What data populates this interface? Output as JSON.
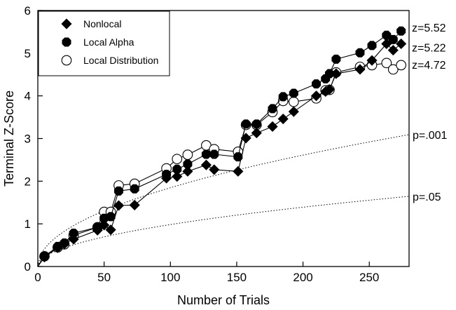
{
  "chart_data": {
    "type": "line",
    "title": "",
    "xlabel": "Number of Trials",
    "ylabel": "Terminal Z-Score",
    "xlim": [
      0,
      280
    ],
    "ylim": [
      0,
      6
    ],
    "xticks": [
      0,
      50,
      100,
      150,
      200,
      250
    ],
    "yticks": [
      0,
      1,
      2,
      3,
      4,
      5,
      6
    ],
    "grid": false,
    "legend_position": "top-left",
    "series": [
      {
        "name": "Nonlocal",
        "marker": "diamond",
        "color": "#000000",
        "x": [
          5,
          15,
          20,
          27,
          45,
          50,
          55,
          61,
          73,
          97,
          105,
          113,
          127,
          133,
          151,
          157,
          165,
          177,
          185,
          193,
          210,
          217,
          220,
          225,
          243,
          252,
          263,
          268,
          274
        ],
        "y": [
          0.22,
          0.44,
          0.53,
          0.64,
          0.85,
          0.97,
          0.86,
          1.43,
          1.44,
          2.07,
          2.11,
          2.23,
          2.38,
          2.27,
          2.23,
          3.01,
          3.13,
          3.28,
          3.46,
          3.63,
          4.0,
          4.1,
          4.15,
          4.52,
          4.62,
          4.83,
          5.22,
          5.07,
          5.22
        ]
      },
      {
        "name": "Local Alpha",
        "marker": "octagon-filled",
        "color": "#000000",
        "x": [
          5,
          15,
          20,
          27,
          45,
          50,
          55,
          61,
          73,
          97,
          105,
          113,
          127,
          133,
          151,
          157,
          165,
          177,
          185,
          193,
          210,
          217,
          220,
          225,
          243,
          252,
          263,
          268,
          274
        ],
        "y": [
          0.24,
          0.47,
          0.55,
          0.78,
          0.92,
          1.13,
          1.17,
          1.77,
          1.82,
          2.16,
          2.28,
          2.4,
          2.63,
          2.63,
          2.57,
          3.34,
          3.34,
          3.7,
          3.98,
          4.06,
          4.28,
          4.4,
          4.52,
          4.86,
          5.01,
          5.18,
          5.42,
          5.32,
          5.52
        ]
      },
      {
        "name": "Local Distribution",
        "marker": "circle-open",
        "color": "#000000",
        "x": [
          5,
          15,
          20,
          27,
          45,
          50,
          55,
          61,
          73,
          97,
          105,
          113,
          127,
          133,
          151,
          157,
          165,
          177,
          185,
          193,
          210,
          217,
          220,
          225,
          243,
          252,
          263,
          268,
          274
        ],
        "y": [
          0.24,
          0.45,
          0.52,
          0.73,
          0.92,
          1.28,
          1.28,
          1.9,
          1.94,
          2.3,
          2.52,
          2.62,
          2.84,
          2.75,
          2.69,
          3.32,
          3.32,
          3.62,
          3.88,
          3.86,
          3.94,
          4.13,
          4.14,
          4.55,
          4.68,
          4.72,
          4.77,
          4.62,
          4.72
        ]
      }
    ],
    "reference_curves": [
      {
        "label": "p=.001",
        "z": 3.09,
        "style": "dotted"
      },
      {
        "label": "p=.05",
        "z": 1.645,
        "style": "dotted"
      }
    ],
    "end_labels": [
      "z=5.52",
      "z=5.22",
      "z=4.72"
    ]
  }
}
